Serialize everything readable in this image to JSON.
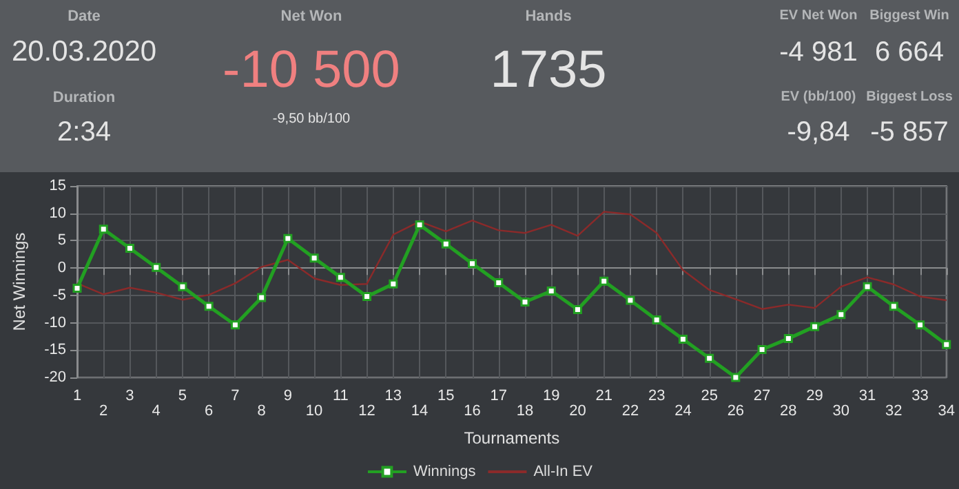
{
  "chart_data": [
    {
      "type": "other",
      "annotations": [
        "Date",
        "20.03.2020",
        "Duration",
        "2:34",
        "Net Won",
        "-10 500",
        "-9,50 bb/100",
        "Hands",
        "1735",
        "EV Net Won",
        "-4 981",
        "Biggest Win",
        "6 664",
        "EV (bb/100)",
        "-9,84",
        "Biggest Loss",
        "-5 857"
      ]
    },
    {
      "type": "line",
      "xlabel": "Tournaments",
      "ylabel": "Net Winnings",
      "categories": [
        "1",
        "2",
        "3",
        "4",
        "5",
        "6",
        "7",
        "8",
        "9",
        "10",
        "11",
        "12",
        "13",
        "14",
        "15",
        "16",
        "17",
        "18",
        "19",
        "20",
        "21",
        "22",
        "23",
        "24",
        "25",
        "26",
        "27",
        "28",
        "29",
        "30",
        "31",
        "32",
        "33",
        "34"
      ],
      "series": [
        {
          "name": "Winnings",
          "color": "#22a022",
          "marker": "square",
          "values": [
            -3.7,
            7.1,
            3.6,
            0.1,
            -3.4,
            -7.0,
            -10.4,
            -5.4,
            5.4,
            1.8,
            -1.7,
            -5.2,
            -2.9,
            7.9,
            4.4,
            0.8,
            -2.7,
            -6.2,
            -4.2,
            -7.6,
            -2.4,
            -5.9,
            -9.5,
            -13.0,
            -16.5,
            -20.0,
            -14.9,
            -12.9,
            -10.7,
            -8.5,
            -3.4,
            -7.0,
            -10.4,
            -14.0
          ]
        },
        {
          "name": "All-In EV",
          "color": "#8b2a2a",
          "marker": "none",
          "values": [
            -2.8,
            -4.8,
            -3.6,
            -4.5,
            -5.8,
            -4.9,
            -2.8,
            0.2,
            1.5,
            -1.9,
            -3.1,
            -2.9,
            6.1,
            8.5,
            6.7,
            8.7,
            6.9,
            6.4,
            7.9,
            5.9,
            10.3,
            9.8,
            6.4,
            -0.4,
            -4.0,
            -5.7,
            -7.5,
            -6.7,
            -7.3,
            -3.4,
            -1.7,
            -3.0,
            -5.2,
            -5.9
          ]
        }
      ],
      "ylim": [
        -20,
        15
      ],
      "yticks": [
        -20,
        -15,
        -10,
        -5,
        0,
        5,
        10,
        15
      ],
      "grid": true,
      "legend": "bottom"
    }
  ]
}
